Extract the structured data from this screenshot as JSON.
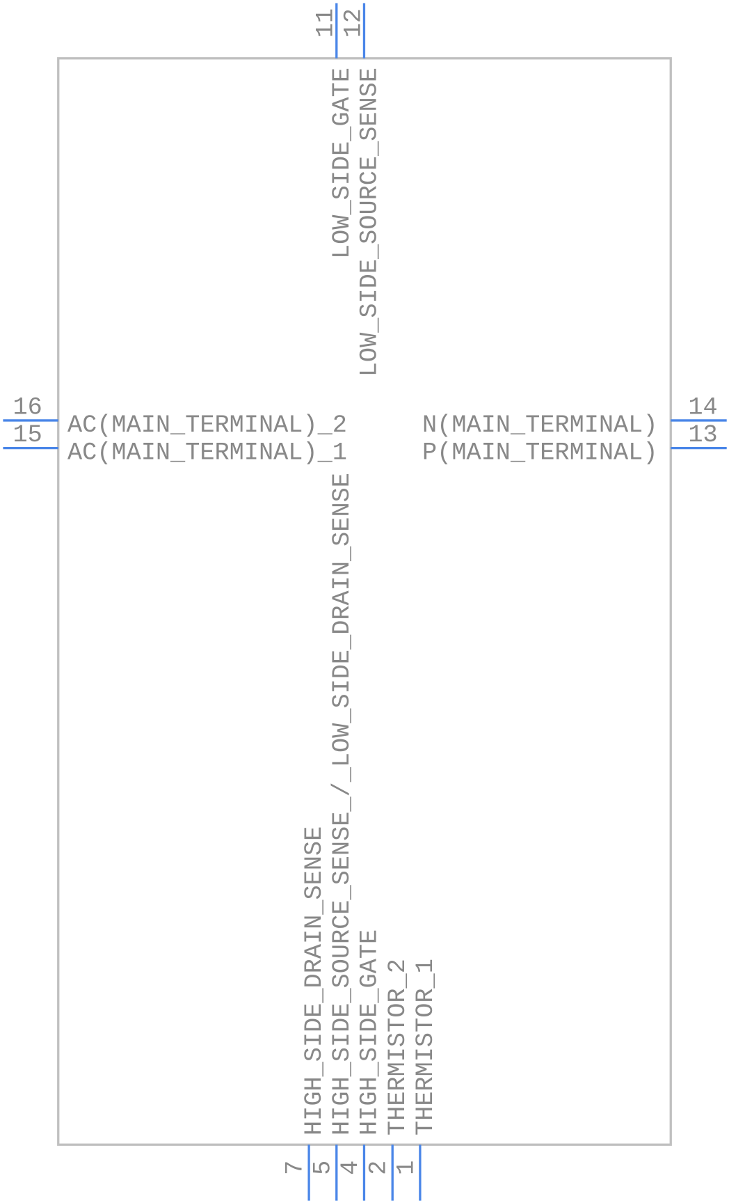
{
  "pins": [
    {
      "number": "16",
      "label": "AC(MAIN_TERMINAL)_2"
    },
    {
      "number": "15",
      "label": "AC(MAIN_TERMINAL)_1"
    },
    {
      "number": "14",
      "label": "N(MAIN_TERMINAL)"
    },
    {
      "number": "13",
      "label": "P(MAIN_TERMINAL)"
    },
    {
      "number": "11",
      "label": "LOW_SIDE_GATE"
    },
    {
      "number": "12",
      "label": "LOW_SIDE_SOURCE_SENSE"
    },
    {
      "number": "7",
      "label": "HIGH_SIDE_DRAIN_SENSE"
    },
    {
      "number": "5",
      "label": "HIGH_SIDE_SOURCE_SENSE_/_LOW_SIDE_DRAIN_SENSE"
    },
    {
      "number": "4",
      "label": "HIGH_SIDE_GATE"
    },
    {
      "number": "2",
      "label": "THERMISTOR_2"
    },
    {
      "number": "1",
      "label": "THERMISTOR_1"
    }
  ]
}
